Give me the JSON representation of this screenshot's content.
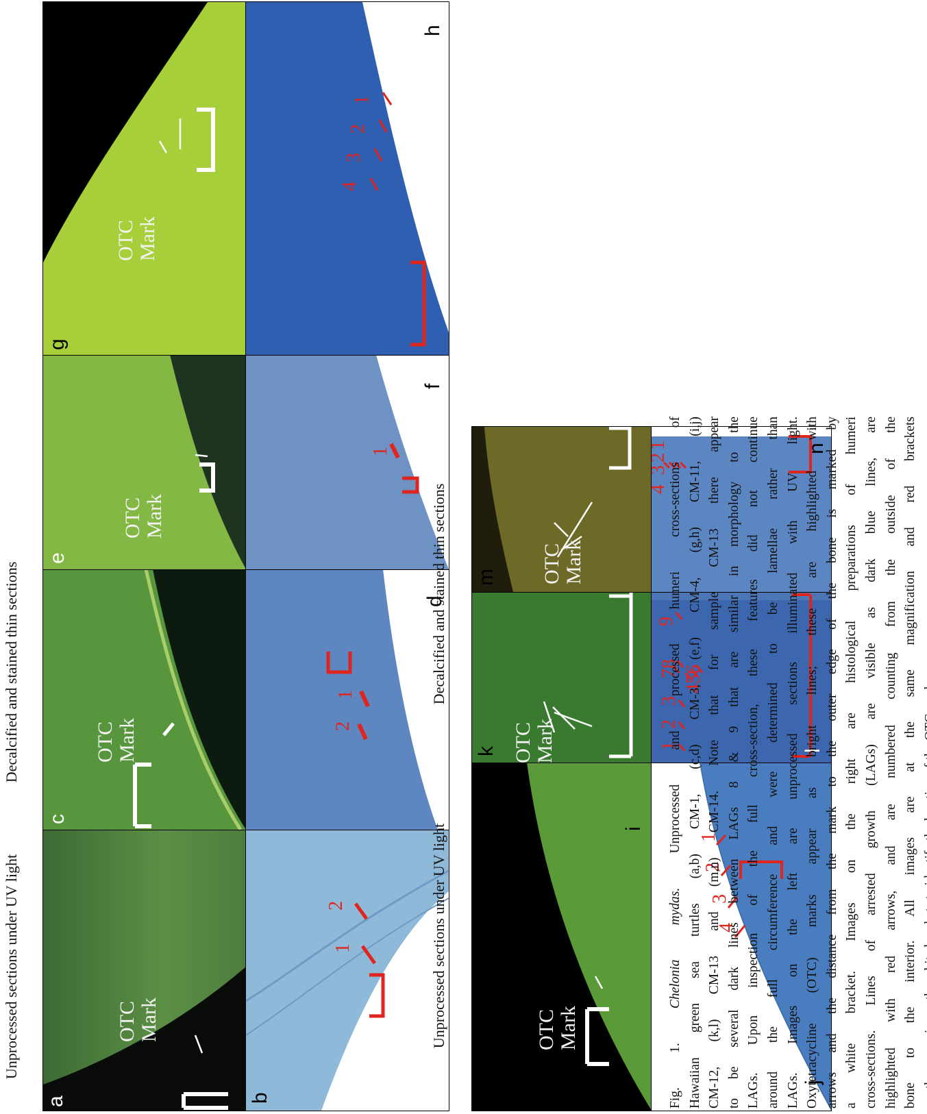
{
  "header_left_group": {
    "uv_title": "Unprocessed sections under UV light",
    "stain_title": "Decalcified and stained thin sections"
  },
  "header_right_group": {
    "uv_title": "Unprocessed sections under UV light",
    "stain_title": "Decalcified and stained thin sections"
  },
  "panels": {
    "a": {
      "label": "a",
      "otc": [
        "OTC",
        "Mark"
      ]
    },
    "b": {
      "label": "b",
      "lags": [
        "1",
        "2"
      ]
    },
    "c": {
      "label": "c",
      "otc": [
        "OTC",
        "Mark"
      ]
    },
    "d": {
      "label": "d",
      "lags": [
        "1",
        "2"
      ]
    },
    "e": {
      "label": "e",
      "otc": [
        "OTC",
        "Mark"
      ]
    },
    "f": {
      "label": "f",
      "lags": [
        "1"
      ]
    },
    "g": {
      "label": "g",
      "otc": [
        "OTC",
        "Mark"
      ]
    },
    "h": {
      "label": "h",
      "lags": [
        "1",
        "2",
        "3",
        "4"
      ]
    },
    "i": {
      "label": "i",
      "otc": [
        "OTC",
        "Mark"
      ]
    },
    "j": {
      "label": "j",
      "lags": [
        "1",
        "2",
        "3",
        "4"
      ]
    },
    "k": {
      "label": "k",
      "otc": [
        "OTC",
        "Mark"
      ]
    },
    "l": {
      "label": "l",
      "lags": [
        "1",
        "2",
        "3",
        "4",
        "5",
        "6",
        "7",
        "8",
        "9"
      ]
    },
    "m": {
      "label": "m",
      "otc": [
        "OTC",
        "Mark"
      ]
    },
    "n": {
      "label": "n",
      "lags": [
        "1",
        "2",
        "3",
        "4"
      ]
    }
  },
  "caption": {
    "lines": [
      "Fig. 1. Chelonia mydas. Unprocessed and processed humeri cross-sections of",
      "Hawaiian green sea turtles (a,b) CM-1, (c,d) CM-3, (e,f) CM-4, (g,h) CM-11, (i,j)",
      "CM-12, (k,l) CM-13 and (m,n) CM-14. Note that for sample CM-13 there appear",
      "to be several dark lines between LAGs 8 & 9 that are similar in morphology to the",
      "LAGs. Upon inspection of the full cross-section, these features did not continue",
      "around the full circumference and were determined to be lamellae rather than",
      "LAGs. Images on the left are unprocessed sections illuminated with UV light.",
      "Oxytetracycline (OTC) marks appear as bright lines; these are highlighted with",
      "arrows and the distance from the mark to the outer edge of the bone is marked by",
      "a white bracket. Images on the right are histological preparations of humeri",
      "cross-sections. Lines of arrested growth (LAGs) are visible as dark blue lines, are",
      "highlighted with red arrows, and are numbered counting from the outside of the",
      "bone to the interior. All images are at the same magnification and red brackets",
      "are the same size as the white brackets to identify the location of the OTC mark"
    ],
    "italic_phrase": "Chelonia mydas."
  },
  "colors": {
    "uv_green": "#5f9a3c",
    "uv_dark": "#0b0d0b",
    "stain_blue": "#4a79b9",
    "lag_red": "#e0241e",
    "bracket_white": "#ffffff"
  }
}
